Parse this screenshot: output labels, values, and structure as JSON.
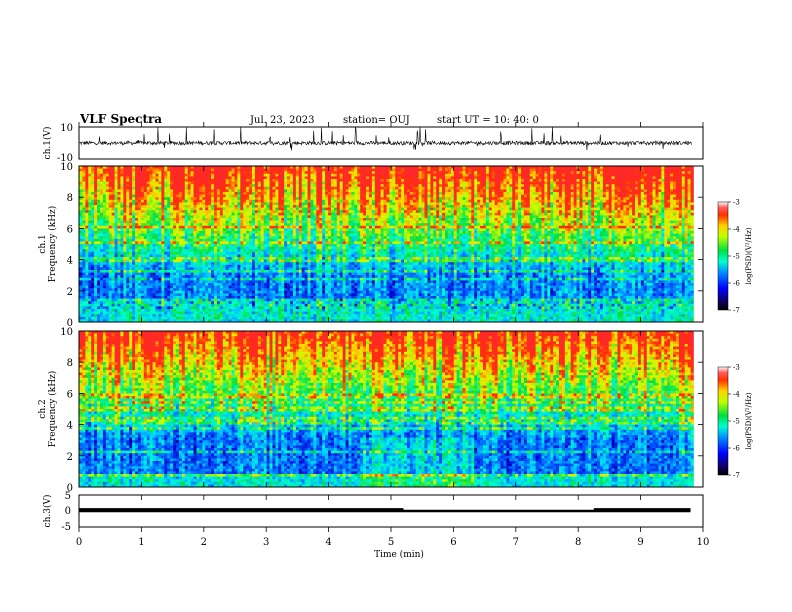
{
  "header": {
    "title": "VLF Spectra",
    "date": "Jul. 23, 2023",
    "station": "station= OUJ",
    "start": "start UT = 10: 40: 0"
  },
  "chart_data": [
    {
      "type": "line",
      "panel": "channel-1-waveform",
      "ylabel": "ch.1(V)",
      "ylim": [
        -10,
        10
      ],
      "yticks": [
        "10",
        "-10"
      ],
      "xlim": [
        0,
        10
      ],
      "description_values": {
        "baseline_V": 0,
        "typical_amplitude_V": 2,
        "max_spike_V": 10
      }
    },
    {
      "type": "heatmap",
      "panel": "channel-1-spectrogram",
      "ylabel_line1": "ch.1",
      "ylabel_line2": "Frequency (kHz)",
      "ylim": [
        0,
        10
      ],
      "yticks": [
        "0",
        "2",
        "4",
        "6",
        "8",
        "10"
      ],
      "xlim": [
        0,
        10
      ],
      "colorbar": {
        "label": "log(PSD)(V²/Hz)",
        "range": [
          -7,
          -3
        ],
        "ticks": [
          "-3",
          "-4",
          "-5",
          "-6",
          "-7"
        ]
      }
    },
    {
      "type": "heatmap",
      "panel": "channel-2-spectrogram",
      "ylabel_line1": "ch.2",
      "ylabel_line2": "Frequency (kHz)",
      "ylim": [
        0,
        10
      ],
      "yticks": [
        "0",
        "2",
        "4",
        "6",
        "8",
        "10"
      ],
      "xlim": [
        0,
        10
      ],
      "colorbar": {
        "label": "log(PSD)(V²/Hz)",
        "range": [
          -7,
          -3
        ],
        "ticks": [
          "-3",
          "-4",
          "-5",
          "-6",
          "-7"
        ]
      }
    },
    {
      "type": "line",
      "panel": "channel-3-signal",
      "ylabel": "ch.3(V)",
      "ylim": [
        -5,
        5
      ],
      "yticks": [
        "5",
        "0",
        "-5"
      ],
      "xlim": [
        0,
        10
      ],
      "xlabel": "Time (min)",
      "xticks": [
        "0",
        "1",
        "2",
        "3",
        "4",
        "5",
        "6",
        "7",
        "8",
        "9",
        "10"
      ],
      "segments": [
        {
          "start": 0,
          "end": 4.4,
          "value": 0.5
        },
        {
          "start": 4.4,
          "end": 5.2,
          "value": 0.5
        },
        {
          "start": 8.25,
          "end": 9.8,
          "value": 0.5
        }
      ],
      "baseline": 0
    }
  ]
}
